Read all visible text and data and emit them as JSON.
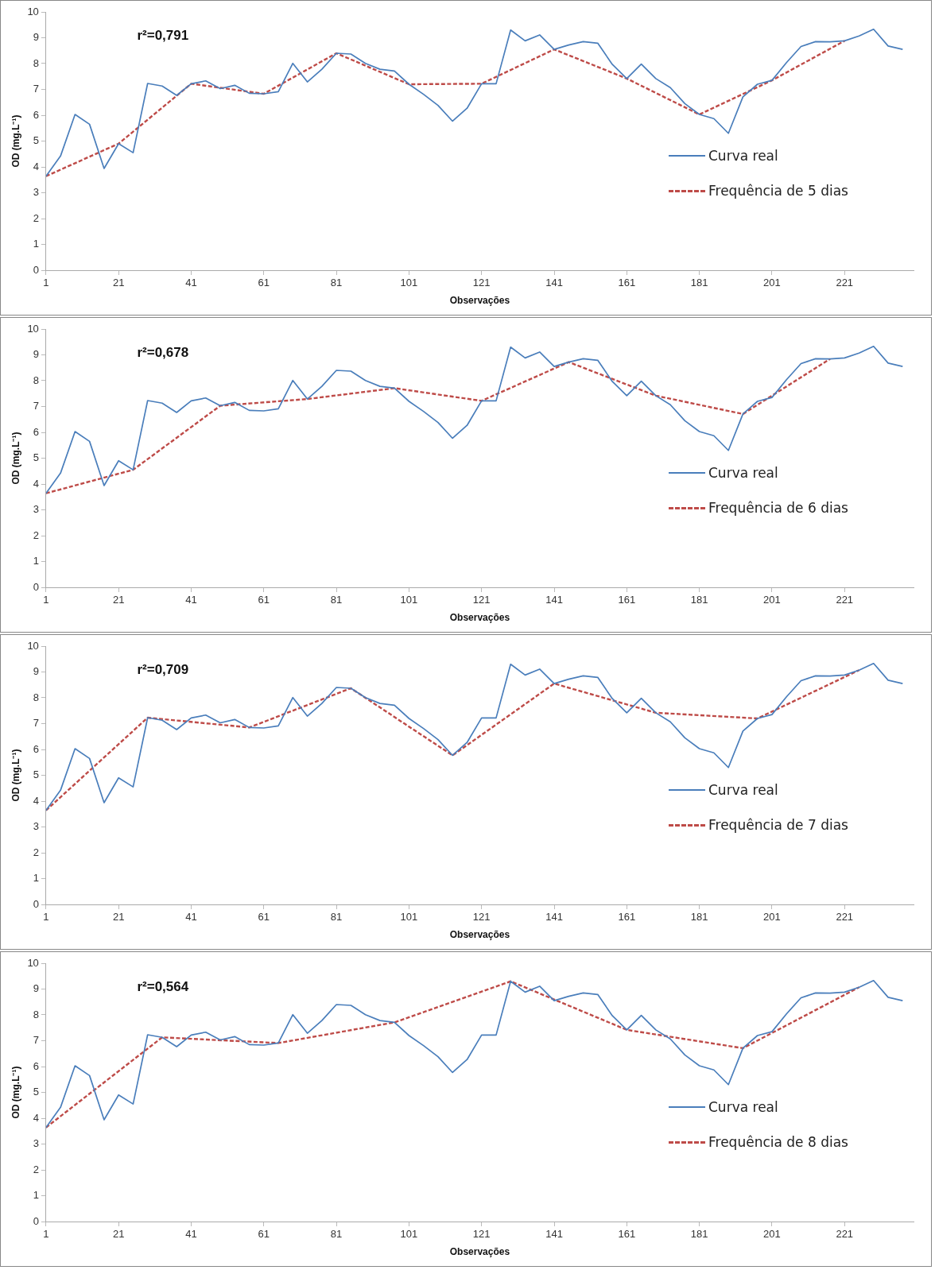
{
  "chart_data": [
    {
      "type": "line",
      "xlabel": "Observações",
      "ylabel": "OD (mg.L⁻¹)",
      "annotations": [
        "r²=0,791"
      ],
      "xlim": [
        1,
        240
      ],
      "xticks": [
        1,
        21,
        41,
        61,
        81,
        101,
        121,
        141,
        161,
        181,
        201,
        221
      ],
      "ylim": [
        0,
        10
      ],
      "yticks": [
        0,
        1,
        2,
        3,
        4,
        5,
        6,
        7,
        8,
        9,
        10
      ],
      "grid": false,
      "legend": "right",
      "marker": "none",
      "series": [
        {
          "name": "Curva real",
          "color": "#4a7ebb",
          "line_style": "solid",
          "x": [
            1,
            5,
            9,
            13,
            17,
            21,
            25,
            29,
            33,
            37,
            41,
            45,
            49,
            53,
            57,
            61,
            65,
            69,
            73,
            77,
            81,
            85,
            89,
            93,
            97,
            101,
            105,
            109,
            113,
            117,
            121,
            125,
            129,
            133,
            137,
            141,
            145,
            149,
            153,
            157,
            161,
            165,
            169,
            173,
            177,
            181,
            185,
            189,
            193,
            197,
            201,
            205,
            209,
            213,
            217,
            221,
            225,
            229,
            233,
            237
          ],
          "values": [
            3.64,
            4.42,
            6.03,
            5.65,
            3.94,
            4.9,
            4.55,
            7.23,
            7.13,
            6.77,
            7.22,
            7.33,
            7.03,
            7.16,
            6.85,
            6.83,
            6.91,
            8.01,
            7.29,
            7.78,
            8.4,
            8.37,
            8.01,
            7.78,
            7.71,
            7.2,
            6.81,
            6.38,
            5.77,
            6.27,
            7.22,
            7.22,
            9.3,
            8.88,
            9.11,
            8.55,
            8.72,
            8.85,
            8.79,
            7.97,
            7.42,
            7.98,
            7.42,
            7.07,
            6.45,
            6.03,
            5.87,
            5.3,
            6.71,
            7.2,
            7.35,
            8.04,
            8.66,
            8.85,
            8.84,
            8.88,
            9.07,
            9.33,
            8.68,
            8.55
          ]
        },
        {
          "name": "Frequência de 5 dias",
          "color": "#be4b48",
          "line_style": "dashed",
          "x": [
            1,
            21,
            41,
            61,
            81,
            101,
            121,
            141,
            161,
            181,
            201,
            221
          ],
          "values": [
            3.64,
            4.9,
            7.22,
            6.83,
            8.4,
            7.2,
            7.22,
            8.55,
            7.42,
            6.03,
            7.35,
            8.88
          ]
        }
      ]
    },
    {
      "type": "line",
      "xlabel": "Observações",
      "ylabel": "OD (mg.L⁻¹)",
      "annotations": [
        "r²=0,678"
      ],
      "xlim": [
        1,
        240
      ],
      "xticks": [
        1,
        21,
        41,
        61,
        81,
        101,
        121,
        141,
        161,
        181,
        201,
        221
      ],
      "ylim": [
        0,
        10
      ],
      "yticks": [
        0,
        1,
        2,
        3,
        4,
        5,
        6,
        7,
        8,
        9,
        10
      ],
      "grid": false,
      "legend": "right",
      "marker": "none",
      "series": [
        {
          "name": "Curva real",
          "color": "#4a7ebb",
          "line_style": "solid",
          "x": [
            1,
            5,
            9,
            13,
            17,
            21,
            25,
            29,
            33,
            37,
            41,
            45,
            49,
            53,
            57,
            61,
            65,
            69,
            73,
            77,
            81,
            85,
            89,
            93,
            97,
            101,
            105,
            109,
            113,
            117,
            121,
            125,
            129,
            133,
            137,
            141,
            145,
            149,
            153,
            157,
            161,
            165,
            169,
            173,
            177,
            181,
            185,
            189,
            193,
            197,
            201,
            205,
            209,
            213,
            217,
            221,
            225,
            229,
            233,
            237
          ],
          "values": [
            3.64,
            4.42,
            6.03,
            5.65,
            3.94,
            4.9,
            4.55,
            7.23,
            7.13,
            6.77,
            7.22,
            7.33,
            7.03,
            7.16,
            6.85,
            6.83,
            6.91,
            8.01,
            7.29,
            7.78,
            8.4,
            8.37,
            8.01,
            7.78,
            7.71,
            7.2,
            6.81,
            6.38,
            5.77,
            6.27,
            7.22,
            7.22,
            9.3,
            8.88,
            9.11,
            8.55,
            8.72,
            8.85,
            8.79,
            7.97,
            7.42,
            7.98,
            7.42,
            7.07,
            6.45,
            6.03,
            5.87,
            5.3,
            6.71,
            7.2,
            7.35,
            8.04,
            8.66,
            8.85,
            8.84,
            8.88,
            9.07,
            9.33,
            8.68,
            8.55
          ]
        },
        {
          "name": "Frequência de 6 dias",
          "color": "#be4b48",
          "line_style": "dashed",
          "x": [
            1,
            25,
            49,
            73,
            97,
            121,
            145,
            169,
            193,
            217
          ],
          "values": [
            3.64,
            4.55,
            7.03,
            7.29,
            7.71,
            7.22,
            8.72,
            7.42,
            6.71,
            8.84
          ]
        }
      ]
    },
    {
      "type": "line",
      "xlabel": "Observações",
      "ylabel": "OD (mg.L⁻¹)",
      "annotations": [
        "r²=0,709"
      ],
      "xlim": [
        1,
        240
      ],
      "xticks": [
        1,
        21,
        41,
        61,
        81,
        101,
        121,
        141,
        161,
        181,
        201,
        221
      ],
      "ylim": [
        0,
        10
      ],
      "yticks": [
        0,
        1,
        2,
        3,
        4,
        5,
        6,
        7,
        8,
        9,
        10
      ],
      "grid": false,
      "legend": "right",
      "marker": "none",
      "series": [
        {
          "name": "Curva real",
          "color": "#4a7ebb",
          "line_style": "solid",
          "x": [
            1,
            5,
            9,
            13,
            17,
            21,
            25,
            29,
            33,
            37,
            41,
            45,
            49,
            53,
            57,
            61,
            65,
            69,
            73,
            77,
            81,
            85,
            89,
            93,
            97,
            101,
            105,
            109,
            113,
            117,
            121,
            125,
            129,
            133,
            137,
            141,
            145,
            149,
            153,
            157,
            161,
            165,
            169,
            173,
            177,
            181,
            185,
            189,
            193,
            197,
            201,
            205,
            209,
            213,
            217,
            221,
            225,
            229,
            233,
            237
          ],
          "values": [
            3.64,
            4.42,
            6.03,
            5.65,
            3.94,
            4.9,
            4.55,
            7.23,
            7.13,
            6.77,
            7.22,
            7.33,
            7.03,
            7.16,
            6.85,
            6.83,
            6.91,
            8.01,
            7.29,
            7.78,
            8.4,
            8.37,
            8.01,
            7.78,
            7.71,
            7.2,
            6.81,
            6.38,
            5.77,
            6.27,
            7.22,
            7.22,
            9.3,
            8.88,
            9.11,
            8.55,
            8.72,
            8.85,
            8.79,
            7.97,
            7.42,
            7.98,
            7.42,
            7.07,
            6.45,
            6.03,
            5.87,
            5.3,
            6.71,
            7.2,
            7.35,
            8.04,
            8.66,
            8.85,
            8.84,
            8.88,
            9.07,
            9.33,
            8.68,
            8.55
          ]
        },
        {
          "name": "Frequência de 7 dias",
          "color": "#be4b48",
          "line_style": "dashed",
          "x": [
            1,
            29,
            57,
            85,
            113,
            141,
            169,
            197,
            225
          ],
          "values": [
            3.64,
            7.23,
            6.85,
            8.37,
            5.77,
            8.55,
            7.42,
            7.2,
            9.07
          ]
        }
      ]
    },
    {
      "type": "line",
      "xlabel": "Observações",
      "ylabel": "OD (mg.L⁻¹)",
      "annotations": [
        "r²=0,564"
      ],
      "xlim": [
        1,
        240
      ],
      "xticks": [
        1,
        21,
        41,
        61,
        81,
        101,
        121,
        141,
        161,
        181,
        201,
        221
      ],
      "ylim": [
        0,
        10
      ],
      "yticks": [
        0,
        1,
        2,
        3,
        4,
        5,
        6,
        7,
        8,
        9,
        10
      ],
      "grid": false,
      "legend": "right",
      "marker": "none",
      "series": [
        {
          "name": "Curva real",
          "color": "#4a7ebb",
          "line_style": "solid",
          "x": [
            1,
            5,
            9,
            13,
            17,
            21,
            25,
            29,
            33,
            37,
            41,
            45,
            49,
            53,
            57,
            61,
            65,
            69,
            73,
            77,
            81,
            85,
            89,
            93,
            97,
            101,
            105,
            109,
            113,
            117,
            121,
            125,
            129,
            133,
            137,
            141,
            145,
            149,
            153,
            157,
            161,
            165,
            169,
            173,
            177,
            181,
            185,
            189,
            193,
            197,
            201,
            205,
            209,
            213,
            217,
            221,
            225,
            229,
            233,
            237
          ],
          "values": [
            3.64,
            4.42,
            6.03,
            5.65,
            3.94,
            4.9,
            4.55,
            7.23,
            7.13,
            6.77,
            7.22,
            7.33,
            7.03,
            7.16,
            6.85,
            6.83,
            6.91,
            8.01,
            7.29,
            7.78,
            8.4,
            8.37,
            8.01,
            7.78,
            7.71,
            7.2,
            6.81,
            6.38,
            5.77,
            6.27,
            7.22,
            7.22,
            9.3,
            8.88,
            9.11,
            8.55,
            8.72,
            8.85,
            8.79,
            7.97,
            7.42,
            7.98,
            7.42,
            7.07,
            6.45,
            6.03,
            5.87,
            5.3,
            6.71,
            7.2,
            7.35,
            8.04,
            8.66,
            8.85,
            8.84,
            8.88,
            9.07,
            9.33,
            8.68,
            8.55
          ]
        },
        {
          "name": "Frequência de 8 dias",
          "color": "#be4b48",
          "line_style": "dashed",
          "x": [
            1,
            33,
            65,
            97,
            129,
            161,
            193,
            225
          ],
          "values": [
            3.64,
            7.13,
            6.91,
            7.71,
            9.3,
            7.42,
            6.71,
            9.07
          ]
        }
      ]
    }
  ]
}
